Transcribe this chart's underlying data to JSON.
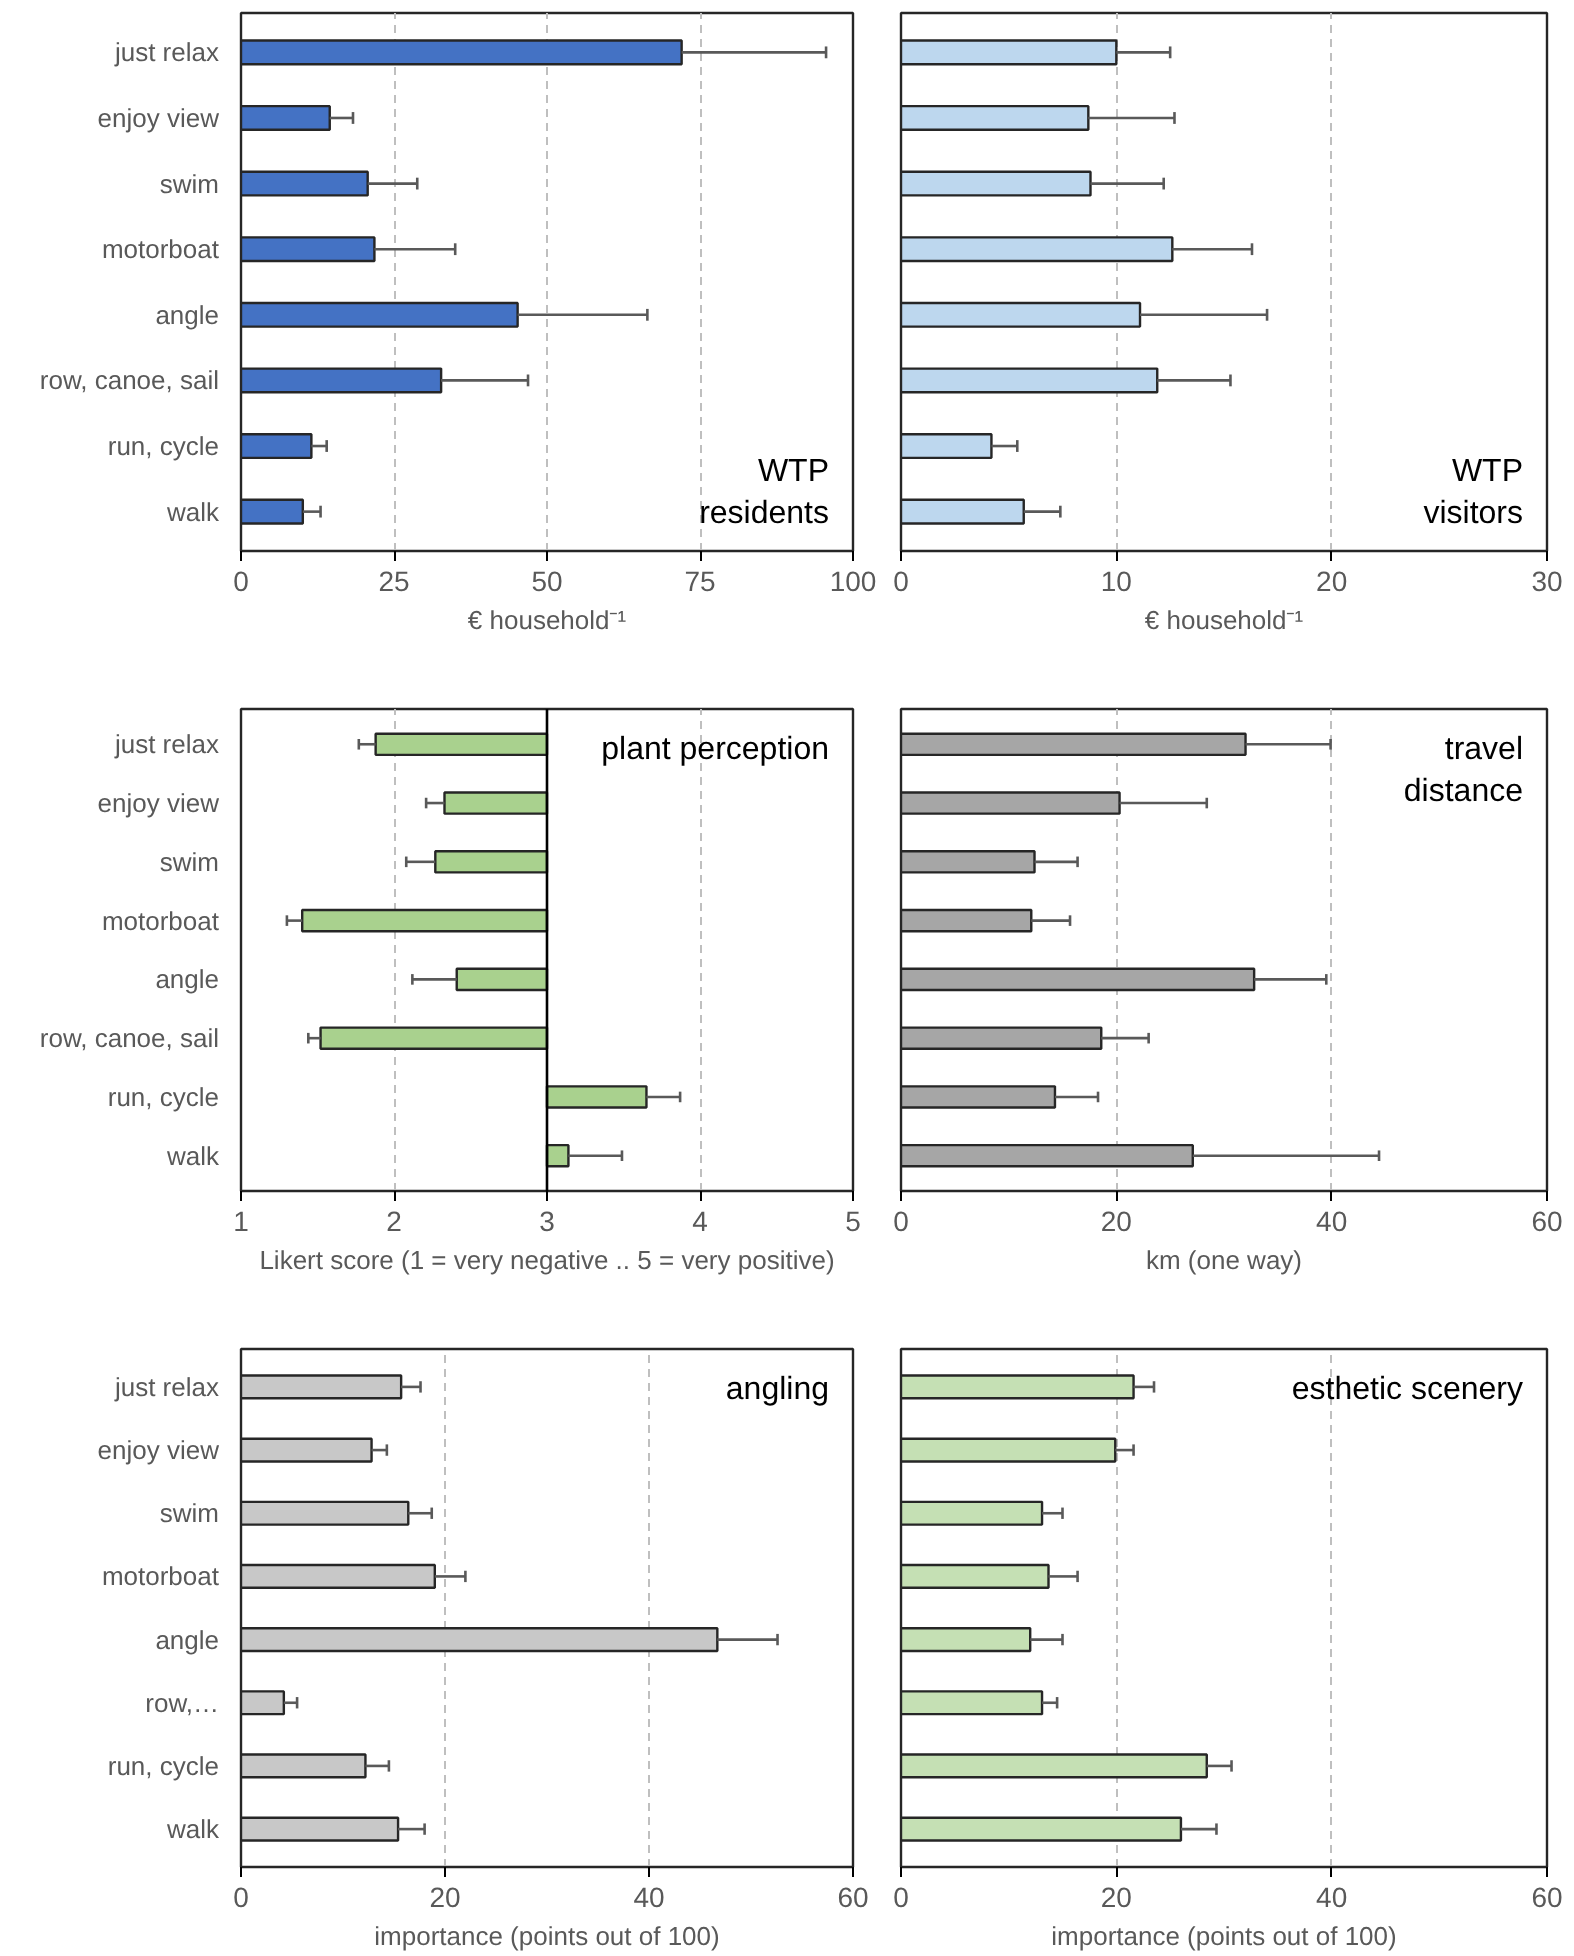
{
  "chart_data": [
    {
      "type": "bar",
      "orientation": "horizontal",
      "categories": [
        "just relax",
        "enjoy view",
        "swim",
        "motorboat",
        "angle",
        "row, canoe, sail",
        "run, cycle",
        "walk"
      ],
      "values": [
        72,
        14.5,
        20.7,
        21.8,
        45.2,
        32.7,
        11.5,
        10.1
      ],
      "errors": [
        23.6,
        3.8,
        8.1,
        13.2,
        21.2,
        14.2,
        2.5,
        2.9
      ],
      "color": "#4472c4",
      "xlim": [
        0,
        100
      ],
      "xticks": [
        0,
        25,
        50,
        75,
        100
      ],
      "xlabel": "€ household⁻¹",
      "grid": "x",
      "annotations": [
        "WTP\nresidents"
      ]
    },
    {
      "type": "bar",
      "orientation": "horizontal",
      "categories": [
        null,
        null,
        null,
        null,
        null,
        null,
        null,
        null
      ],
      "values": [
        10.0,
        8.7,
        8.8,
        12.6,
        11.1,
        11.9,
        4.2,
        5.7
      ],
      "errors": [
        2.5,
        4.0,
        3.4,
        3.7,
        5.9,
        3.4,
        1.2,
        1.7
      ],
      "color": "#bdd7ee",
      "xlim": [
        0,
        30
      ],
      "xticks": [
        0,
        10,
        20,
        30
      ],
      "xlabel": "€ household⁻¹",
      "grid": "x",
      "annotations": [
        "WTP\nvisitors"
      ]
    },
    {
      "type": "bar",
      "orientation": "horizontal",
      "categories": [
        "just relax",
        "enjoy view",
        "swim",
        "motorboat",
        "angle",
        "row, canoe, sail",
        "run, cycle",
        "walk"
      ],
      "base": [
        3,
        3,
        3,
        3,
        3,
        3,
        3,
        3
      ],
      "values": [
        -1.12,
        -0.67,
        -0.73,
        -1.6,
        -0.59,
        -1.48,
        0.65,
        0.14
      ],
      "errors": [
        0.11,
        0.12,
        0.19,
        0.1,
        0.29,
        0.08,
        0.22,
        0.35
      ],
      "color": "#a9d18e",
      "xlim": [
        1,
        5
      ],
      "xticks": [
        1,
        2,
        3,
        4,
        5
      ],
      "xlabel": "Likert score (1 = very negative .. 5 = very positive)",
      "grid": "x",
      "ref_lines": [
        {
          "axis": "x",
          "value": 3,
          "color": "#000000"
        }
      ],
      "annotations": [
        "plant perception"
      ]
    },
    {
      "type": "bar",
      "orientation": "horizontal",
      "categories": [
        null,
        null,
        null,
        null,
        null,
        null,
        null,
        null
      ],
      "values": [
        32.0,
        20.3,
        12.4,
        12.1,
        32.8,
        18.6,
        14.3,
        27.1
      ],
      "errors": [
        7.9,
        8.1,
        4.0,
        3.6,
        6.7,
        4.4,
        4.0,
        17.3
      ],
      "color": "#a6a6a6",
      "xlim": [
        0,
        60
      ],
      "xticks": [
        0,
        20,
        40,
        60
      ],
      "xlabel": "km (one way)",
      "grid": "x",
      "annotations": [
        "travel\ndistance"
      ]
    },
    {
      "type": "bar",
      "orientation": "horizontal",
      "categories": [
        "just relax",
        "enjoy view",
        "swim",
        "motorboat",
        "angle",
        "row,…",
        "run, cycle",
        "walk"
      ],
      "values": [
        15.7,
        12.8,
        16.4,
        19.0,
        46.7,
        4.2,
        12.2,
        15.4
      ],
      "errors": [
        1.9,
        1.5,
        2.3,
        3.0,
        5.9,
        1.3,
        2.3,
        2.6
      ],
      "color": "#c8c8c8",
      "xlim": [
        0,
        60
      ],
      "xticks": [
        0,
        20,
        40,
        60
      ],
      "xlabel": "importance (points out of 100)",
      "grid": "x",
      "annotations": [
        "angling"
      ]
    },
    {
      "type": "bar",
      "orientation": "horizontal",
      "categories": [
        null,
        null,
        null,
        null,
        null,
        null,
        null,
        null
      ],
      "values": [
        21.6,
        19.9,
        13.1,
        13.7,
        12.0,
        13.1,
        28.4,
        26.0
      ],
      "errors": [
        1.9,
        1.7,
        1.9,
        2.7,
        3.0,
        1.4,
        2.3,
        3.3
      ],
      "color": "#c5e0b4",
      "xlim": [
        0,
        60
      ],
      "xticks": [
        0,
        20,
        40,
        60
      ],
      "xlabel": "importance (points out of 100)",
      "grid": "x",
      "annotations": [
        "esthetic scenery"
      ]
    }
  ]
}
